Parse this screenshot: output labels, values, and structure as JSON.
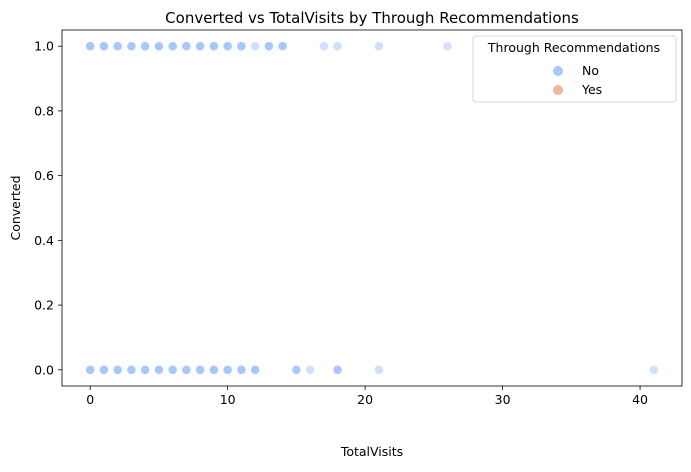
{
  "chart_data": {
    "type": "scatter",
    "title": "Converted vs TotalVisits by Through Recommendations",
    "xlabel": "TotalVisits",
    "ylabel": "Converted",
    "xlim": [
      -2.05,
      43.05
    ],
    "ylim": [
      -0.05,
      1.05
    ],
    "xticks": [
      0,
      10,
      20,
      30,
      40
    ],
    "yticks": [
      0.0,
      0.2,
      0.4,
      0.6,
      0.8,
      1.0
    ],
    "ytick_labels": [
      "0.0",
      "0.2",
      "0.4",
      "0.6",
      "0.8",
      "1.0"
    ],
    "grid": false,
    "legend": {
      "title": "Through Recommendations",
      "placement": "top-right",
      "entries": [
        {
          "label": "No",
          "color": "#aac7fd"
        },
        {
          "label": "Yes",
          "color": "#f2b69b"
        }
      ]
    },
    "series": [
      {
        "name": "No",
        "color": "#aac7fd",
        "x": [
          0,
          1,
          2,
          3,
          4,
          5,
          6,
          7,
          8,
          9,
          10,
          11,
          12,
          13,
          14,
          17,
          18,
          21,
          26,
          0,
          1,
          2,
          3,
          4,
          5,
          6,
          7,
          8,
          9,
          10,
          11,
          12,
          15,
          16,
          18,
          21,
          41
        ],
        "y": [
          1,
          1,
          1,
          1,
          1,
          1,
          1,
          1,
          1,
          1,
          1,
          1,
          1,
          1,
          1,
          1,
          1,
          1,
          1,
          0,
          0,
          0,
          0,
          0,
          0,
          0,
          0,
          0,
          0,
          0,
          0,
          0,
          0,
          0,
          0,
          0,
          0
        ],
        "opacity": [
          1,
          1,
          1,
          1,
          1,
          1,
          1,
          1,
          1,
          1,
          1,
          1,
          0.55,
          1,
          1,
          0.55,
          0.55,
          0.55,
          0.55,
          1,
          1,
          1,
          1,
          1,
          1,
          1,
          1,
          1,
          1,
          1,
          1,
          1,
          1,
          0.55,
          1,
          0.55,
          0.55
        ]
      },
      {
        "name": "Yes",
        "color": "#f2b69b",
        "x": [],
        "y": []
      }
    ]
  }
}
